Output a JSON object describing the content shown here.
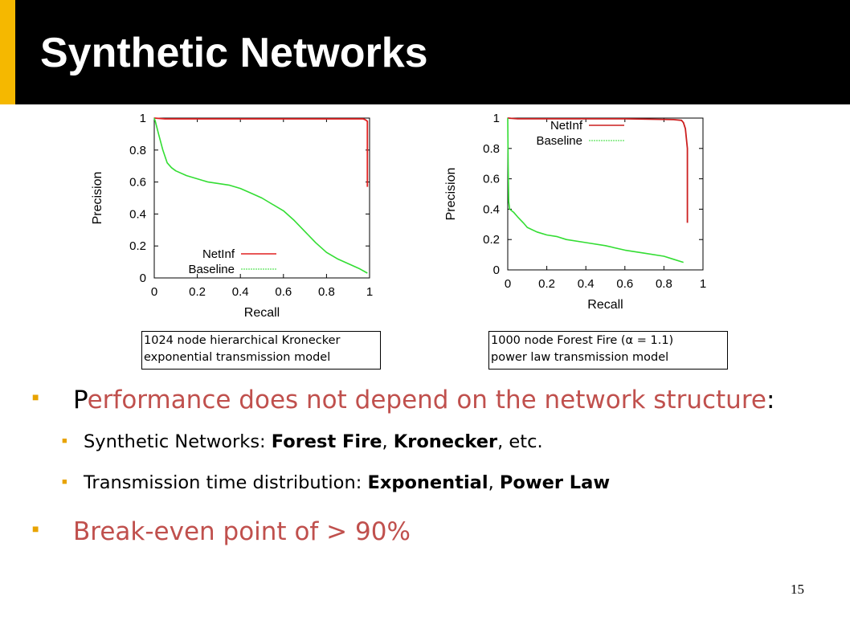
{
  "slide": {
    "title": "Synthetic Networks",
    "page_number": "15",
    "accent_color": "#f5b800"
  },
  "captions": [
    {
      "line1": "1024 node hierarchical Kronecker",
      "line2": "exponential transmission model"
    },
    {
      "line1": "1000 node Forest Fire (α = 1.1)",
      "line2": "power law transmission model"
    }
  ],
  "bullets": {
    "b1": {
      "first": "P",
      "rest": "erformance does not depend on the network structure",
      "colon": ":"
    },
    "b1_1": {
      "prefix": "Synthetic Networks: ",
      "bold1": "Forest Fire",
      "sep": ", ",
      "bold2": "Kronecker",
      "suffix": ", etc."
    },
    "b1_2": {
      "prefix": "Transmission time distribution: ",
      "bold1": "Exponential",
      "sep": ", ",
      "bold2": "Power Law"
    },
    "b2": {
      "text": "Break-even point of > 90%"
    }
  },
  "chart_data": [
    {
      "type": "line",
      "xlabel": "Recall",
      "ylabel": "Precision",
      "xlim": [
        0,
        1
      ],
      "ylim": [
        0,
        1
      ],
      "xticks": [
        "0",
        "0.2",
        "0.4",
        "0.6",
        "0.8",
        "1"
      ],
      "yticks": [
        "0",
        "0.2",
        "0.4",
        "0.6",
        "0.8",
        "1"
      ],
      "legend_position": "bottom-right",
      "series": [
        {
          "name": "NetInf",
          "color": "#e02020",
          "x": [
            0,
            0.05,
            0.3,
            0.6,
            0.9,
            0.97,
            0.98,
            0.99,
            0.99
          ],
          "y": [
            1,
            0.995,
            0.995,
            0.995,
            0.995,
            0.995,
            0.99,
            0.98,
            0.57
          ]
        },
        {
          "name": "Baseline",
          "color": "#33dd33",
          "x": [
            0,
            0.005,
            0.02,
            0.04,
            0.06,
            0.08,
            0.1,
            0.15,
            0.2,
            0.25,
            0.3,
            0.35,
            0.4,
            0.45,
            0.5,
            0.55,
            0.6,
            0.65,
            0.7,
            0.75,
            0.8,
            0.85,
            0.9,
            0.95,
            0.99
          ],
          "y": [
            1,
            0.98,
            0.9,
            0.8,
            0.72,
            0.69,
            0.67,
            0.64,
            0.62,
            0.6,
            0.59,
            0.58,
            0.56,
            0.53,
            0.5,
            0.46,
            0.42,
            0.36,
            0.29,
            0.22,
            0.16,
            0.12,
            0.09,
            0.06,
            0.03
          ]
        }
      ]
    },
    {
      "type": "line",
      "xlabel": "Recall",
      "ylabel": "Precision",
      "xlim": [
        0,
        1
      ],
      "ylim": [
        0,
        1
      ],
      "xticks": [
        "0",
        "0.2",
        "0.4",
        "0.6",
        "0.8",
        "1"
      ],
      "yticks": [
        "0",
        "0.2",
        "0.4",
        "0.6",
        "0.8",
        "1"
      ],
      "legend_position": "top-right",
      "series": [
        {
          "name": "NetInf",
          "color": "#cc1f1f",
          "x": [
            0,
            0.05,
            0.3,
            0.6,
            0.85,
            0.89,
            0.9,
            0.91,
            0.92,
            0.92
          ],
          "y": [
            1,
            0.995,
            0.995,
            0.995,
            0.99,
            0.985,
            0.97,
            0.93,
            0.8,
            0.31
          ]
        },
        {
          "name": "Baseline",
          "color": "#33dd33",
          "x": [
            0,
            0.002,
            0.005,
            0.01,
            0.03,
            0.05,
            0.08,
            0.1,
            0.15,
            0.2,
            0.25,
            0.3,
            0.4,
            0.5,
            0.6,
            0.7,
            0.8,
            0.85,
            0.9
          ],
          "y": [
            1,
            0.7,
            0.45,
            0.4,
            0.38,
            0.35,
            0.31,
            0.28,
            0.25,
            0.23,
            0.22,
            0.2,
            0.18,
            0.16,
            0.13,
            0.11,
            0.09,
            0.07,
            0.05
          ]
        }
      ]
    }
  ]
}
